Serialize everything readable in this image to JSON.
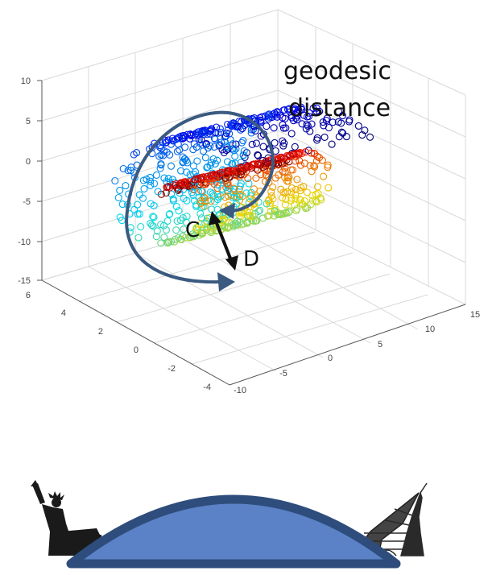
{
  "annotation": {
    "line1": "geodesic",
    "line2": "distance",
    "point_c": "C",
    "point_d": "D"
  },
  "axes": {
    "z_ticks": [
      "10",
      "5",
      "0",
      "-5",
      "-10",
      "-15"
    ],
    "left_ticks": [
      "6",
      "4",
      "2",
      "0",
      "-2",
      "-4"
    ],
    "right_ticks": [
      "-10",
      "-5",
      "0",
      "5",
      "10",
      "15"
    ]
  },
  "colors": {
    "arrow": "#3b5a80",
    "arrow_black": "#111111",
    "dome_fill": "#5b82c6",
    "dome_stroke": "#2e4d7c",
    "grid": "#d9d9d9",
    "axis": "#555555"
  },
  "icons": [
    "statue-of-liberty-icon",
    "eiffel-tower-icon"
  ],
  "chart_data": {
    "type": "scatter",
    "kind": "3d swiss roll",
    "xlim": [
      -10,
      15
    ],
    "ylim": [
      -4,
      6
    ],
    "zlim": [
      -15,
      10
    ],
    "grid": true,
    "colormap": "jet"
  }
}
